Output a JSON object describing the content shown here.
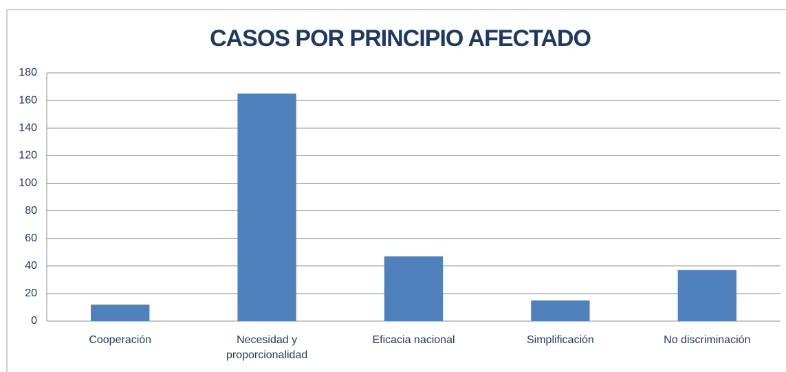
{
  "chart_data": {
    "type": "bar",
    "title": "CASOS POR PRINCIPIO AFECTADO",
    "categories": [
      "Cooperación",
      "Necesidad y proporcionalidad",
      "Eficacia nacional",
      "Simplificación",
      "No discriminación"
    ],
    "values": [
      12,
      165,
      47,
      15,
      37
    ],
    "color": "#4f81bd",
    "ylim": [
      0,
      180
    ],
    "yticks": [
      0,
      20,
      40,
      60,
      80,
      100,
      120,
      140,
      160,
      180
    ],
    "grid": true
  }
}
